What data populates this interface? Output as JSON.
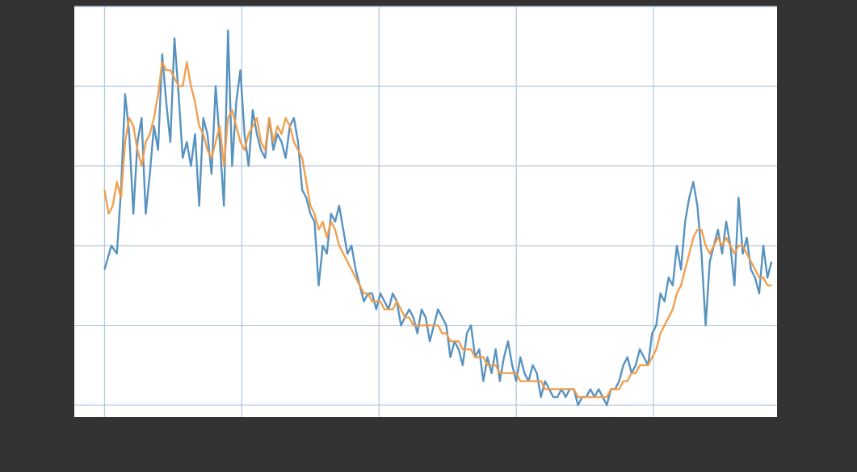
{
  "chart_data": {
    "type": "line",
    "title": "",
    "xlabel": "",
    "ylabel": "",
    "xlim": [
      -22,
      490
    ],
    "ylim": [
      -0.15,
      5.0
    ],
    "xticks": [
      0,
      100,
      200,
      300,
      400
    ],
    "yticks": [
      0,
      1,
      2,
      3,
      4,
      5
    ],
    "grid": true,
    "legend": "none",
    "colors": {
      "figure_bg": "#333333",
      "axes_bg": "#ffffff",
      "grid": "#b0c4de",
      "observed": "#4f8dbd",
      "smoothed": "#f09b48"
    },
    "series": [
      {
        "key": "observed",
        "points": [
          [
            0,
            1.7
          ],
          [
            5,
            2.0
          ],
          [
            9,
            1.9
          ],
          [
            12,
            2.7
          ],
          [
            15,
            3.9
          ],
          [
            18,
            3.4
          ],
          [
            21,
            2.4
          ],
          [
            24,
            3.3
          ],
          [
            27,
            3.6
          ],
          [
            30,
            2.4
          ],
          [
            33,
            2.9
          ],
          [
            36,
            3.5
          ],
          [
            39,
            3.2
          ],
          [
            42,
            4.4
          ],
          [
            45,
            3.8
          ],
          [
            48,
            3.3
          ],
          [
            51,
            4.6
          ],
          [
            54,
            3.9
          ],
          [
            57,
            3.1
          ],
          [
            60,
            3.3
          ],
          [
            63,
            3.0
          ],
          [
            66,
            3.4
          ],
          [
            69,
            2.5
          ],
          [
            72,
            3.6
          ],
          [
            75,
            3.4
          ],
          [
            78,
            2.9
          ],
          [
            81,
            4.0
          ],
          [
            84,
            3.3
          ],
          [
            87,
            2.5
          ],
          [
            90,
            4.7
          ],
          [
            93,
            3.0
          ],
          [
            96,
            3.8
          ],
          [
            99,
            4.2
          ],
          [
            102,
            3.4
          ],
          [
            105,
            3.0
          ],
          [
            108,
            3.7
          ],
          [
            111,
            3.4
          ],
          [
            114,
            3.2
          ],
          [
            117,
            3.1
          ],
          [
            120,
            3.6
          ],
          [
            123,
            3.2
          ],
          [
            126,
            3.4
          ],
          [
            129,
            3.3
          ],
          [
            132,
            3.1
          ],
          [
            135,
            3.5
          ],
          [
            138,
            3.6
          ],
          [
            141,
            3.3
          ],
          [
            144,
            2.7
          ],
          [
            147,
            2.6
          ],
          [
            150,
            2.4
          ],
          [
            153,
            2.3
          ],
          [
            156,
            1.5
          ],
          [
            159,
            2.0
          ],
          [
            162,
            1.9
          ],
          [
            165,
            2.4
          ],
          [
            168,
            2.3
          ],
          [
            171,
            2.5
          ],
          [
            174,
            2.2
          ],
          [
            177,
            1.9
          ],
          [
            180,
            2.0
          ],
          [
            183,
            1.7
          ],
          [
            186,
            1.5
          ],
          [
            189,
            1.3
          ],
          [
            192,
            1.4
          ],
          [
            195,
            1.4
          ],
          [
            198,
            1.2
          ],
          [
            201,
            1.4
          ],
          [
            204,
            1.3
          ],
          [
            207,
            1.2
          ],
          [
            210,
            1.4
          ],
          [
            213,
            1.3
          ],
          [
            216,
            1.0
          ],
          [
            219,
            1.1
          ],
          [
            222,
            1.2
          ],
          [
            225,
            1.1
          ],
          [
            228,
            0.9
          ],
          [
            231,
            1.2
          ],
          [
            234,
            1.1
          ],
          [
            237,
            0.8
          ],
          [
            240,
            1.0
          ],
          [
            243,
            1.2
          ],
          [
            246,
            1.1
          ],
          [
            249,
            1.0
          ],
          [
            252,
            0.6
          ],
          [
            255,
            0.8
          ],
          [
            258,
            0.7
          ],
          [
            261,
            0.5
          ],
          [
            264,
            0.9
          ],
          [
            267,
            1.0
          ],
          [
            270,
            0.6
          ],
          [
            273,
            0.7
          ],
          [
            276,
            0.3
          ],
          [
            279,
            0.6
          ],
          [
            282,
            0.4
          ],
          [
            285,
            0.7
          ],
          [
            288,
            0.3
          ],
          [
            291,
            0.6
          ],
          [
            294,
            0.8
          ],
          [
            297,
            0.5
          ],
          [
            300,
            0.3
          ],
          [
            303,
            0.6
          ],
          [
            306,
            0.4
          ],
          [
            309,
            0.3
          ],
          [
            312,
            0.5
          ],
          [
            315,
            0.4
          ],
          [
            318,
            0.1
          ],
          [
            321,
            0.3
          ],
          [
            324,
            0.2
          ],
          [
            327,
            0.1
          ],
          [
            330,
            0.1
          ],
          [
            333,
            0.2
          ],
          [
            336,
            0.1
          ],
          [
            339,
            0.2
          ],
          [
            342,
            0.2
          ],
          [
            345,
            0.0
          ],
          [
            348,
            0.1
          ],
          [
            351,
            0.1
          ],
          [
            354,
            0.2
          ],
          [
            357,
            0.1
          ],
          [
            360,
            0.2
          ],
          [
            363,
            0.1
          ],
          [
            366,
            0.0
          ],
          [
            369,
            0.2
          ],
          [
            372,
            0.2
          ],
          [
            375,
            0.3
          ],
          [
            378,
            0.5
          ],
          [
            381,
            0.6
          ],
          [
            384,
            0.4
          ],
          [
            387,
            0.5
          ],
          [
            390,
            0.7
          ],
          [
            393,
            0.6
          ],
          [
            396,
            0.5
          ],
          [
            399,
            0.9
          ],
          [
            402,
            1.0
          ],
          [
            405,
            1.4
          ],
          [
            408,
            1.3
          ],
          [
            411,
            1.6
          ],
          [
            414,
            1.5
          ],
          [
            417,
            2.0
          ],
          [
            420,
            1.7
          ],
          [
            423,
            2.3
          ],
          [
            426,
            2.6
          ],
          [
            429,
            2.8
          ],
          [
            432,
            2.5
          ],
          [
            435,
            1.9
          ],
          [
            438,
            1.0
          ],
          [
            441,
            1.8
          ],
          [
            444,
            2.0
          ],
          [
            447,
            2.2
          ],
          [
            450,
            1.9
          ],
          [
            453,
            2.3
          ],
          [
            456,
            2.0
          ],
          [
            459,
            1.5
          ],
          [
            462,
            2.6
          ],
          [
            465,
            1.9
          ],
          [
            468,
            2.1
          ],
          [
            471,
            1.7
          ],
          [
            474,
            1.6
          ],
          [
            477,
            1.4
          ],
          [
            480,
            2.0
          ],
          [
            483,
            1.6
          ],
          [
            486,
            1.8
          ]
        ]
      },
      {
        "key": "smoothed",
        "points": [
          [
            0,
            2.7
          ],
          [
            3,
            2.4
          ],
          [
            6,
            2.5
          ],
          [
            9,
            2.8
          ],
          [
            12,
            2.6
          ],
          [
            15,
            3.3
          ],
          [
            18,
            3.6
          ],
          [
            21,
            3.5
          ],
          [
            24,
            3.2
          ],
          [
            27,
            3.0
          ],
          [
            30,
            3.3
          ],
          [
            33,
            3.4
          ],
          [
            36,
            3.6
          ],
          [
            39,
            3.9
          ],
          [
            42,
            4.3
          ],
          [
            45,
            4.2
          ],
          [
            48,
            4.2
          ],
          [
            51,
            4.1
          ],
          [
            54,
            4.0
          ],
          [
            57,
            4.0
          ],
          [
            60,
            4.3
          ],
          [
            63,
            4.0
          ],
          [
            66,
            3.8
          ],
          [
            69,
            3.5
          ],
          [
            72,
            3.4
          ],
          [
            75,
            3.2
          ],
          [
            78,
            3.1
          ],
          [
            81,
            3.3
          ],
          [
            84,
            3.5
          ],
          [
            87,
            3.0
          ],
          [
            90,
            3.6
          ],
          [
            93,
            3.7
          ],
          [
            96,
            3.5
          ],
          [
            99,
            3.3
          ],
          [
            102,
            3.2
          ],
          [
            105,
            3.4
          ],
          [
            108,
            3.5
          ],
          [
            111,
            3.6
          ],
          [
            114,
            3.3
          ],
          [
            117,
            3.2
          ],
          [
            120,
            3.6
          ],
          [
            123,
            3.3
          ],
          [
            126,
            3.5
          ],
          [
            129,
            3.4
          ],
          [
            132,
            3.6
          ],
          [
            135,
            3.5
          ],
          [
            138,
            3.3
          ],
          [
            141,
            3.2
          ],
          [
            144,
            3.1
          ],
          [
            147,
            2.8
          ],
          [
            150,
            2.5
          ],
          [
            153,
            2.4
          ],
          [
            156,
            2.2
          ],
          [
            159,
            2.3
          ],
          [
            162,
            2.1
          ],
          [
            165,
            2.3
          ],
          [
            168,
            2.2
          ],
          [
            171,
            2.0
          ],
          [
            174,
            1.9
          ],
          [
            177,
            1.8
          ],
          [
            180,
            1.7
          ],
          [
            183,
            1.6
          ],
          [
            186,
            1.5
          ],
          [
            189,
            1.4
          ],
          [
            192,
            1.4
          ],
          [
            195,
            1.3
          ],
          [
            198,
            1.3
          ],
          [
            201,
            1.3
          ],
          [
            204,
            1.2
          ],
          [
            207,
            1.2
          ],
          [
            210,
            1.2
          ],
          [
            213,
            1.3
          ],
          [
            216,
            1.2
          ],
          [
            219,
            1.1
          ],
          [
            222,
            1.1
          ],
          [
            225,
            1.0
          ],
          [
            228,
            1.0
          ],
          [
            231,
            1.0
          ],
          [
            234,
            1.0
          ],
          [
            237,
            1.0
          ],
          [
            240,
            1.0
          ],
          [
            243,
            1.0
          ],
          [
            246,
            0.9
          ],
          [
            249,
            0.9
          ],
          [
            252,
            0.8
          ],
          [
            255,
            0.8
          ],
          [
            258,
            0.8
          ],
          [
            261,
            0.7
          ],
          [
            264,
            0.7
          ],
          [
            267,
            0.7
          ],
          [
            270,
            0.6
          ],
          [
            273,
            0.6
          ],
          [
            276,
            0.6
          ],
          [
            279,
            0.5
          ],
          [
            282,
            0.5
          ],
          [
            285,
            0.5
          ],
          [
            288,
            0.4
          ],
          [
            291,
            0.4
          ],
          [
            294,
            0.4
          ],
          [
            297,
            0.4
          ],
          [
            300,
            0.4
          ],
          [
            303,
            0.3
          ],
          [
            306,
            0.3
          ],
          [
            309,
            0.3
          ],
          [
            312,
            0.3
          ],
          [
            315,
            0.3
          ],
          [
            318,
            0.3
          ],
          [
            321,
            0.2
          ],
          [
            324,
            0.2
          ],
          [
            327,
            0.2
          ],
          [
            330,
            0.2
          ],
          [
            333,
            0.2
          ],
          [
            336,
            0.2
          ],
          [
            339,
            0.2
          ],
          [
            342,
            0.2
          ],
          [
            345,
            0.1
          ],
          [
            348,
            0.1
          ],
          [
            351,
            0.1
          ],
          [
            354,
            0.1
          ],
          [
            357,
            0.1
          ],
          [
            360,
            0.1
          ],
          [
            363,
            0.1
          ],
          [
            366,
            0.1
          ],
          [
            369,
            0.2
          ],
          [
            372,
            0.2
          ],
          [
            375,
            0.2
          ],
          [
            378,
            0.3
          ],
          [
            381,
            0.3
          ],
          [
            384,
            0.4
          ],
          [
            387,
            0.4
          ],
          [
            390,
            0.5
          ],
          [
            393,
            0.5
          ],
          [
            396,
            0.5
          ],
          [
            399,
            0.6
          ],
          [
            402,
            0.7
          ],
          [
            405,
            0.9
          ],
          [
            408,
            1.0
          ],
          [
            411,
            1.1
          ],
          [
            414,
            1.2
          ],
          [
            417,
            1.4
          ],
          [
            420,
            1.5
          ],
          [
            423,
            1.7
          ],
          [
            426,
            1.9
          ],
          [
            429,
            2.1
          ],
          [
            432,
            2.2
          ],
          [
            435,
            2.2
          ],
          [
            438,
            2.0
          ],
          [
            441,
            1.9
          ],
          [
            444,
            2.0
          ],
          [
            447,
            2.1
          ],
          [
            450,
            2.0
          ],
          [
            453,
            2.1
          ],
          [
            456,
            2.0
          ],
          [
            459,
            1.9
          ],
          [
            462,
            2.0
          ],
          [
            465,
            2.0
          ],
          [
            468,
            1.9
          ],
          [
            471,
            1.8
          ],
          [
            474,
            1.7
          ],
          [
            477,
            1.6
          ],
          [
            480,
            1.6
          ],
          [
            483,
            1.5
          ],
          [
            486,
            1.5
          ]
        ]
      }
    ]
  }
}
